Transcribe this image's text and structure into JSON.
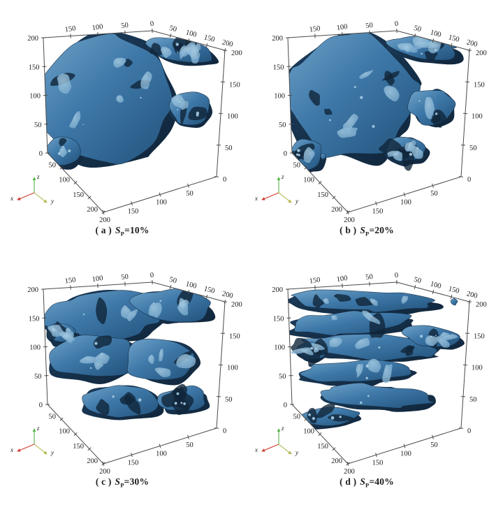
{
  "figure": {
    "background": "#ffffff",
    "text_color": "#1b1b1b",
    "edge_color": "#4a4a4a",
    "surface_colors": {
      "highlight": "#a9cde3",
      "light": "#6fa3c9",
      "mid": "#3e78a8",
      "deep": "#22527b",
      "dark": "#10253a",
      "shadow": "#1d3e5e"
    },
    "triad": {
      "x": {
        "label": "x",
        "color": "#ce3a30"
      },
      "y": {
        "label": "y",
        "color": "#b0b648"
      },
      "z": {
        "label": "z",
        "color": "#55b447"
      }
    },
    "axis_ticks": {
      "z_left": [
        "0",
        "50",
        "100",
        "150",
        "200"
      ],
      "x_top": [
        "150",
        "100",
        "50",
        "0"
      ],
      "y_top_right": [
        "50",
        "100",
        "150",
        "200"
      ],
      "z_right": [
        "200",
        "150",
        "100",
        "50",
        "0"
      ],
      "x_bottom_left": [
        "50",
        "100",
        "150",
        "200"
      ],
      "y_bottom_front": [
        "200",
        "150",
        "100",
        "50"
      ]
    },
    "panels": [
      {
        "id": "a",
        "caption": {
          "index": "( a )",
          "sym": "S",
          "sub": "P",
          "value": "=10%"
        },
        "structure": {
          "seed": 11,
          "irregularity": 0.16,
          "pieces": [
            [
              152,
              138,
              95,
              90,
              0
            ],
            [
              258,
              70,
              48,
              16,
              12
            ],
            [
              272,
              152,
              30,
              24,
              0
            ],
            [
              90,
              215,
              26,
              20,
              0
            ]
          ],
          "islands": [
            [
              305,
              60,
              6
            ]
          ],
          "crevices": 10,
          "highlights": 14,
          "specks": 12
        }
      },
      {
        "id": "b",
        "caption": {
          "index": "( b )",
          "sym": "S",
          "sub": "P",
          "value": "=20%"
        },
        "structure": {
          "seed": 23,
          "irregularity": 0.24,
          "pieces": [
            [
              150,
              135,
              93,
              88,
              0
            ],
            [
              255,
              68,
              50,
              15,
              10
            ],
            [
              268,
              150,
              32,
              26,
              0
            ],
            [
              88,
              220,
              24,
              22,
              0
            ],
            [
              230,
              212,
              30,
              18,
              0
            ]
          ],
          "islands": [
            [
              113,
              222,
              4
            ],
            [
              300,
              62,
              5
            ]
          ],
          "crevices": 16,
          "highlights": 16,
          "specks": 13
        }
      },
      {
        "id": "c",
        "caption": {
          "index": "( c )",
          "sym": "S",
          "sub": "P",
          "value": "=30%"
        },
        "structure": {
          "seed": 37,
          "irregularity": 0.3,
          "pieces": [
            [
              150,
              88,
              80,
              34,
              -4
            ],
            [
              245,
              75,
              55,
              22,
              6
            ],
            [
              130,
              148,
              62,
              32,
              0
            ],
            [
              230,
              152,
              52,
              30,
              0
            ],
            [
              170,
              212,
              55,
              24,
              2
            ],
            [
              262,
              210,
              34,
              18,
              -6
            ],
            [
              86,
              115,
              20,
              14,
              0
            ]
          ],
          "islands": [
            [
              60,
              170,
              5
            ],
            [
              88,
              250,
              4
            ]
          ],
          "crevices": 14,
          "highlights": 16,
          "specks": 13
        }
      },
      {
        "id": "d",
        "caption": {
          "index": "( d )",
          "sym": "S",
          "sub": "P",
          "value": "=40%"
        },
        "structure": {
          "seed": 53,
          "irregularity": 0.28,
          "pieces": [
            [
              165,
              68,
              100,
              15,
              2
            ],
            [
              150,
              100,
              88,
              16,
              -3
            ],
            [
              180,
              135,
              95,
              17,
              3
            ],
            [
              160,
              170,
              85,
              15,
              -2
            ],
            [
              185,
              205,
              80,
              16,
              3
            ],
            [
              120,
              235,
              45,
              12,
              -4
            ],
            [
              268,
              120,
              40,
              14,
              8
            ],
            [
              95,
              140,
              22,
              12,
              0
            ]
          ],
          "islands": [
            [
              60,
              160,
              4
            ],
            [
              92,
              247,
              5
            ],
            [
              300,
              70,
              5
            ]
          ],
          "crevices": 13,
          "highlights": 18,
          "specks": 13
        }
      }
    ]
  },
  "chart_data": {
    "type": "isosurface",
    "title": "",
    "layout": "2x2 grid of 3D isosurface renderings of a porous structure at increasing Sp",
    "axes": {
      "x": {
        "range": [
          0,
          200
        ],
        "ticks": [
          0,
          50,
          100,
          150,
          200
        ]
      },
      "y": {
        "range": [
          0,
          200
        ],
        "ticks": [
          0,
          50,
          100,
          150,
          200
        ]
      },
      "z": {
        "range": [
          0,
          200
        ],
        "ticks": [
          0,
          50,
          100,
          150,
          200
        ]
      }
    },
    "grid": false,
    "legend": null,
    "surface_color": "#3e78a8",
    "subplots": [
      {
        "index": "(a)",
        "parameter": "Sp",
        "value_percent": 10,
        "appearance": "dense nearly-solid slab with few voids"
      },
      {
        "index": "(b)",
        "parameter": "Sp",
        "value_percent": 20,
        "appearance": "slab with more voids and eroded edges"
      },
      {
        "index": "(c)",
        "parameter": "Sp",
        "value_percent": 30,
        "appearance": "fragmented clusters with open gaps"
      },
      {
        "index": "(d)",
        "parameter": "Sp",
        "value_percent": 40,
        "appearance": "elongated interconnected strands, largest voids"
      }
    ]
  }
}
